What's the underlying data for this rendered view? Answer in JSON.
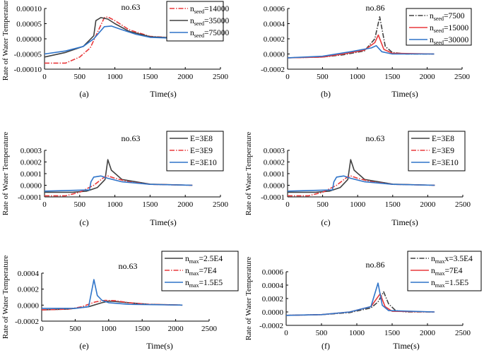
{
  "chart_data": [
    {
      "id": "a",
      "type": "line",
      "title": "no.63",
      "panel_label": "(a)",
      "xlabel": "Time(s)",
      "ylabel": "Rate of Water Temperature",
      "xlim": [
        0,
        2500
      ],
      "ylim": [
        -0.0001,
        0.0001
      ],
      "xticks": [
        0,
        500,
        1000,
        1500,
        2000,
        2500
      ],
      "xtick_labels": [
        "0",
        "500",
        "1000",
        "1500",
        "2000",
        "2500"
      ],
      "yticks": [
        -0.0001,
        -5e-05,
        0,
        5e-05,
        0.0001
      ],
      "ytick_labels": [
        "-0.00010",
        "-0.00005",
        "0.00000",
        "0.00005",
        "0.00010"
      ],
      "legend_position": "top-right",
      "series": [
        {
          "name": "n",
          "sub": "seed",
          "suffix": "=14000",
          "color": "#e8393b",
          "dash": "dashdot",
          "points": [
            [
              0,
              -8e-05
            ],
            [
              300,
              -8e-05
            ],
            [
              500,
              -6e-05
            ],
            [
              650,
              -3e-05
            ],
            [
              750,
              2e-05
            ],
            [
              850,
              7e-05
            ],
            [
              900,
              7.2e-05
            ],
            [
              1000,
              6e-05
            ],
            [
              1200,
              3e-05
            ],
            [
              1500,
              8e-06
            ],
            [
              2100,
              0.0
            ]
          ]
        },
        {
          "name": "n",
          "sub": "seed",
          "suffix": "=35000",
          "color": "#404040",
          "dash": "solid",
          "points": [
            [
              0,
              -6e-05
            ],
            [
              300,
              -4.5e-05
            ],
            [
              550,
              -2.5e-05
            ],
            [
              700,
              1e-05
            ],
            [
              730,
              6e-05
            ],
            [
              800,
              7e-05
            ],
            [
              900,
              6.5e-05
            ],
            [
              1000,
              5e-05
            ],
            [
              1200,
              2.5e-05
            ],
            [
              1500,
              7e-06
            ],
            [
              2100,
              0.0
            ]
          ]
        },
        {
          "name": "n",
          "sub": "seed",
          "suffix": "=75000",
          "color": "#2f74c9",
          "dash": "solid",
          "points": [
            [
              0,
              -5e-05
            ],
            [
              300,
              -4e-05
            ],
            [
              550,
              -2.5e-05
            ],
            [
              700,
              0.0
            ],
            [
              850,
              4e-05
            ],
            [
              950,
              4.2e-05
            ],
            [
              1100,
              3e-05
            ],
            [
              1300,
              1.5e-05
            ],
            [
              1500,
              5e-06
            ],
            [
              2100,
              0.0
            ]
          ]
        }
      ]
    },
    {
      "id": "b",
      "type": "line",
      "title": "no.86",
      "panel_label": "(b)",
      "xlabel": "Time(s)",
      "ylabel": "",
      "xlim": [
        0,
        2500
      ],
      "ylim": [
        -0.0002,
        0.0006
      ],
      "xticks": [
        0,
        500,
        1000,
        1500,
        2000,
        2500
      ],
      "xtick_labels": [
        "0",
        "500",
        "1000",
        "1500",
        "2000",
        "2500"
      ],
      "yticks": [
        -0.0002,
        0,
        0.0002,
        0.0004,
        0.0006
      ],
      "ytick_labels": [
        "-0.0002",
        "0.0000",
        "0.0002",
        "0.0004",
        "0.0006"
      ],
      "legend_position": "top-right",
      "series": [
        {
          "name": "n",
          "sub": "seed",
          "suffix": "=7500",
          "color": "#404040",
          "dash": "dashdot",
          "points": [
            [
              0,
              -5e-05
            ],
            [
              500,
              -4e-05
            ],
            [
              800,
              -1e-05
            ],
            [
              1100,
              4e-05
            ],
            [
              1250,
              0.0002
            ],
            [
              1320,
              0.00049
            ],
            [
              1400,
              0.0001
            ],
            [
              1500,
              2e-05
            ],
            [
              1700,
              0.0
            ],
            [
              2100,
              0.0
            ]
          ]
        },
        {
          "name": "n",
          "sub": "seed",
          "suffix": "=15000",
          "color": "#e8393b",
          "dash": "solid",
          "points": [
            [
              0,
              -5e-05
            ],
            [
              500,
              -4e-05
            ],
            [
              800,
              0.0
            ],
            [
              1100,
              5e-05
            ],
            [
              1250,
              0.00015
            ],
            [
              1300,
              0.00025
            ],
            [
              1380,
              6e-05
            ],
            [
              1500,
              1e-05
            ],
            [
              2100,
              0.0
            ]
          ]
        },
        {
          "name": "n",
          "sub": "seed",
          "suffix": "=30000",
          "color": "#2f74c9",
          "dash": "solid",
          "points": [
            [
              0,
              -5e-05
            ],
            [
              500,
              -3e-05
            ],
            [
              900,
              3e-05
            ],
            [
              1200,
              8e-05
            ],
            [
              1270,
              0.00011
            ],
            [
              1350,
              3e-05
            ],
            [
              1500,
              0.0
            ],
            [
              2100,
              0.0
            ]
          ]
        }
      ]
    },
    {
      "id": "c1",
      "type": "line",
      "title": "no.63",
      "panel_label": "(c)",
      "xlabel": "Time(s)",
      "ylabel": "Rate of Water Temperature",
      "xlim": [
        0,
        2500
      ],
      "ylim": [
        -0.0001,
        0.0003
      ],
      "xticks": [
        0,
        500,
        1000,
        1500,
        2000,
        2500
      ],
      "xtick_labels": [
        "0",
        "500",
        "1000",
        "1500",
        "2000",
        "2500"
      ],
      "yticks": [
        -0.0001,
        0,
        0.0001,
        0.0002,
        0.0003
      ],
      "ytick_labels": [
        "-0.0001",
        "0.0000",
        "0.0001",
        "0.0002",
        "0.0003"
      ],
      "legend_position": "top-right",
      "series": [
        {
          "name": "E=3E8",
          "sub": "",
          "suffix": "",
          "color": "#404040",
          "dash": "solid",
          "points": [
            [
              0,
              -6e-05
            ],
            [
              400,
              -6e-05
            ],
            [
              600,
              -5e-05
            ],
            [
              750,
              -2e-05
            ],
            [
              860,
              5e-05
            ],
            [
              900,
              0.00022
            ],
            [
              950,
              0.00013
            ],
            [
              1100,
              5e-05
            ],
            [
              1500,
              1e-05
            ],
            [
              2100,
              0.0
            ]
          ]
        },
        {
          "name": "E=3E9",
          "sub": "",
          "suffix": "",
          "color": "#e8393b",
          "dash": "dashdot",
          "points": [
            [
              0,
              -9e-05
            ],
            [
              300,
              -9e-05
            ],
            [
              500,
              -6e-05
            ],
            [
              700,
              0.0
            ],
            [
              850,
              7e-05
            ],
            [
              900,
              8e-05
            ],
            [
              1000,
              6e-05
            ],
            [
              1200,
              3e-05
            ],
            [
              1500,
              8e-06
            ],
            [
              2100,
              0.0
            ]
          ]
        },
        {
          "name": "E=3E10",
          "sub": "",
          "suffix": "",
          "color": "#2f74c9",
          "dash": "solid",
          "points": [
            [
              0,
              -5e-05
            ],
            [
              640,
              -4e-05
            ],
            [
              660,
              3e-05
            ],
            [
              700,
              7e-05
            ],
            [
              800,
              8e-05
            ],
            [
              900,
              6e-05
            ],
            [
              1100,
              3e-05
            ],
            [
              1500,
              8e-06
            ],
            [
              2100,
              0.0
            ]
          ]
        }
      ]
    },
    {
      "id": "c2",
      "type": "line",
      "title": "no.63",
      "panel_label": "(c)",
      "xlabel": "Time(s)",
      "ylabel": "Rate of Water Temperature",
      "xlim": [
        0,
        2500
      ],
      "ylim": [
        -0.0001,
        0.0003
      ],
      "xticks": [
        0,
        500,
        1000,
        1500,
        2000,
        2500
      ],
      "xtick_labels": [
        "0",
        "500",
        "1000",
        "1500",
        "2000",
        "2500"
      ],
      "yticks": [
        -0.0001,
        0,
        0.0001,
        0.0002,
        0.0003
      ],
      "ytick_labels": [
        "-0.0001",
        "0.0000",
        "0.0001",
        "0.0002",
        "0.0003"
      ],
      "legend_position": "top-right",
      "series": [
        {
          "name": "E=3E8",
          "sub": "",
          "suffix": "",
          "color": "#404040",
          "dash": "solid",
          "points": [
            [
              0,
              -6e-05
            ],
            [
              400,
              -6e-05
            ],
            [
              600,
              -5e-05
            ],
            [
              750,
              -2e-05
            ],
            [
              860,
              5e-05
            ],
            [
              900,
              0.00022
            ],
            [
              950,
              0.00013
            ],
            [
              1100,
              5e-05
            ],
            [
              1500,
              1e-05
            ],
            [
              2100,
              0.0
            ]
          ]
        },
        {
          "name": "E=3E9",
          "sub": "",
          "suffix": "",
          "color": "#e8393b",
          "dash": "dashdot",
          "points": [
            [
              0,
              -9e-05
            ],
            [
              300,
              -9e-05
            ],
            [
              500,
              -6e-05
            ],
            [
              700,
              0.0
            ],
            [
              850,
              7e-05
            ],
            [
              900,
              8e-05
            ],
            [
              1000,
              6e-05
            ],
            [
              1200,
              3e-05
            ],
            [
              1500,
              8e-06
            ],
            [
              2100,
              0.0
            ]
          ]
        },
        {
          "name": "E=3E10",
          "sub": "",
          "suffix": "",
          "color": "#2f74c9",
          "dash": "solid",
          "points": [
            [
              0,
              -5e-05
            ],
            [
              640,
              -4e-05
            ],
            [
              660,
              3e-05
            ],
            [
              700,
              7e-05
            ],
            [
              800,
              8e-05
            ],
            [
              900,
              6e-05
            ],
            [
              1100,
              3e-05
            ],
            [
              1500,
              8e-06
            ],
            [
              2100,
              0.0
            ]
          ]
        }
      ]
    },
    {
      "id": "e",
      "type": "line",
      "title": "no.63",
      "panel_label": "(e)",
      "xlabel": "Time(s)",
      "ylabel": "Rate of Water Temperature",
      "xlim": [
        0,
        2500
      ],
      "ylim": [
        -0.0002,
        0.0004
      ],
      "xticks": [
        0,
        500,
        1000,
        1500,
        2000,
        2500
      ],
      "xtick_labels": [
        "0",
        "500",
        "1000",
        "1500",
        "2000",
        "2500"
      ],
      "yticks": [
        -0.0002,
        0,
        0.0002,
        0.0004
      ],
      "ytick_labels": [
        "-0.0002",
        "0.0000",
        "0.0002",
        "0.0004"
      ],
      "legend_position": "top-right",
      "series": [
        {
          "name": "n",
          "sub": "max",
          "suffix": "=2.5E4",
          "color": "#404040",
          "dash": "solid",
          "points": [
            [
              0,
              -6e-05
            ],
            [
              400,
              -5e-05
            ],
            [
              700,
              -2e-05
            ],
            [
              900,
              3e-05
            ],
            [
              1000,
              5e-05
            ],
            [
              1100,
              4.5e-05
            ],
            [
              1300,
              3e-05
            ],
            [
              1600,
              1e-05
            ],
            [
              2100,
              0.0
            ]
          ]
        },
        {
          "name": "n",
          "sub": "max",
          "suffix": "=7E4",
          "color": "#e8393b",
          "dash": "dashdot",
          "points": [
            [
              0,
              -6e-05
            ],
            [
              400,
              -5e-05
            ],
            [
              600,
              -2e-05
            ],
            [
              800,
              4e-05
            ],
            [
              950,
              6e-05
            ],
            [
              1100,
              5.5e-05
            ],
            [
              1300,
              3e-05
            ],
            [
              1600,
              1e-05
            ],
            [
              2100,
              0.0
            ]
          ]
        },
        {
          "name": "n",
          "sub": "max",
          "suffix": "=1.5E5",
          "color": "#2f74c9",
          "dash": "solid",
          "points": [
            [
              0,
              -4e-05
            ],
            [
              500,
              -4e-05
            ],
            [
              700,
              -2e-05
            ],
            [
              780,
              0.00032
            ],
            [
              830,
              0.00012
            ],
            [
              900,
              6e-05
            ],
            [
              1000,
              3e-05
            ],
            [
              1300,
              1e-05
            ],
            [
              2100,
              0.0
            ]
          ]
        }
      ]
    },
    {
      "id": "f",
      "type": "line",
      "title": "no.86",
      "panel_label": "(f)",
      "xlabel": "Time(s)",
      "ylabel": "Rate of Water Temperature",
      "xlim": [
        0,
        2500
      ],
      "ylim": [
        -0.0002,
        0.0006
      ],
      "xticks": [
        0,
        500,
        1000,
        1500,
        2000,
        2500
      ],
      "xtick_labels": [
        "0",
        "500",
        "1000",
        "1500",
        "2000",
        "2500"
      ],
      "yticks": [
        -0.0002,
        0,
        0.0002,
        0.0004,
        0.0006
      ],
      "ytick_labels": [
        "-0.0002",
        "0.0000",
        "0.0002",
        "0.0004",
        "0.0006"
      ],
      "legend_position": "top-right",
      "series": [
        {
          "name": "n",
          "sub": "max",
          "suffix": "x=3.5E4",
          "color": "#404040",
          "dash": "dashdot",
          "points": [
            [
              0,
              -5e-05
            ],
            [
              500,
              -4e-05
            ],
            [
              900,
              -1e-05
            ],
            [
              1200,
              6e-05
            ],
            [
              1300,
              0.00015
            ],
            [
              1380,
              0.0003
            ],
            [
              1450,
              0.00012
            ],
            [
              1550,
              2e-05
            ],
            [
              1700,
              0.0
            ],
            [
              2100,
              0.0
            ]
          ]
        },
        {
          "name": "n",
          "sub": "max",
          "suffix": "=7E4",
          "color": "#e8393b",
          "dash": "solid",
          "points": [
            [
              0,
              -5e-05
            ],
            [
              500,
              -4e-05
            ],
            [
              900,
              0.0
            ],
            [
              1200,
              8e-05
            ],
            [
              1330,
              0.00027
            ],
            [
              1400,
              8e-05
            ],
            [
              1500,
              1e-05
            ],
            [
              2100,
              0.0
            ]
          ]
        },
        {
          "name": "n",
          "sub": "max",
          "suffix": "=1.5E5",
          "color": "#2f74c9",
          "dash": "solid",
          "points": [
            [
              0,
              -5e-05
            ],
            [
              500,
              -4e-05
            ],
            [
              900,
              0.0
            ],
            [
              1200,
              8e-05
            ],
            [
              1300,
              0.00043
            ],
            [
              1360,
              0.0001
            ],
            [
              1450,
              2e-05
            ],
            [
              2100,
              0.0
            ]
          ]
        }
      ]
    }
  ]
}
